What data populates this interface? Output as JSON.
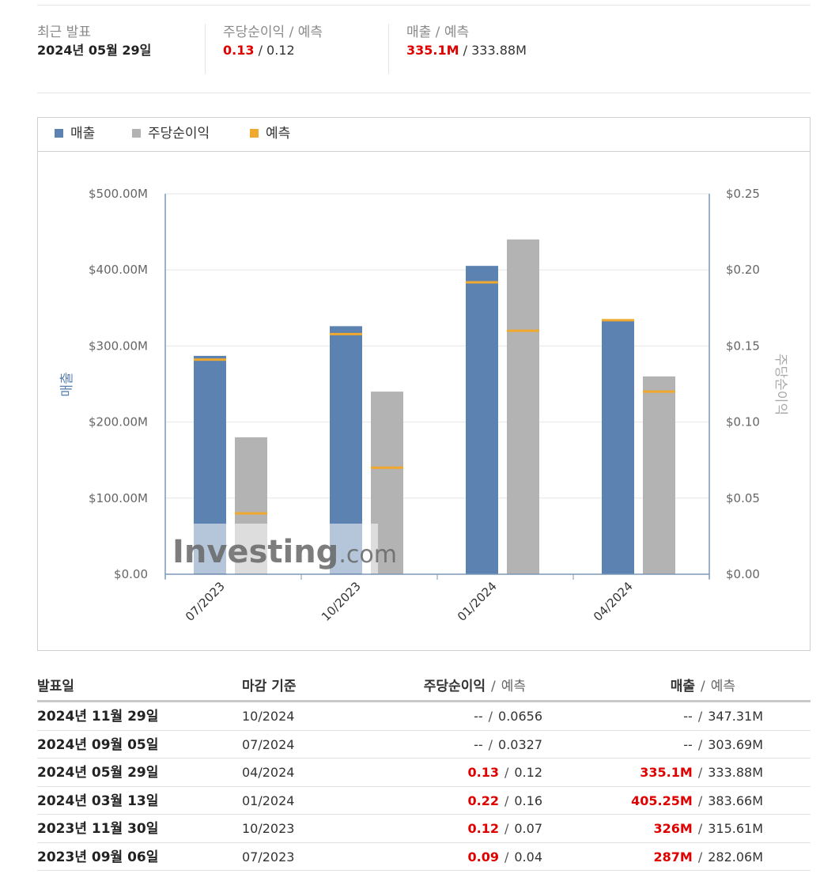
{
  "summary": {
    "recent_label": "최근 발표",
    "recent_date": "2024년 05월 29일",
    "eps_label": "주당순이익 / 예측",
    "eps_actual": "0.13",
    "eps_forecast": "0.12",
    "rev_label": "매출 / 예측",
    "rev_actual": "335.1M",
    "rev_forecast": "333.88M"
  },
  "legend": {
    "revenue": "매출",
    "eps": "주당순이익",
    "forecast": "예측"
  },
  "colors": {
    "revenue": "#5b82b0",
    "eps": "#b3b3b3",
    "forecast": "#f0a92e",
    "red": "#e00000"
  },
  "chart_data": {
    "type": "bar",
    "categories": [
      "07/2023",
      "10/2023",
      "01/2024",
      "04/2024"
    ],
    "series": [
      {
        "name": "매출",
        "axis": "left",
        "values": [
          287,
          326,
          405.25,
          335.1
        ],
        "forecast": [
          282.06,
          315.61,
          383.66,
          333.88
        ]
      },
      {
        "name": "주당순이익",
        "axis": "right",
        "values": [
          0.09,
          0.12,
          0.22,
          0.13
        ],
        "forecast": [
          0.04,
          0.07,
          0.16,
          0.12
        ]
      }
    ],
    "ylabel_left": "매출",
    "ylabel_right": "주당순이익",
    "ylim_left": [
      0,
      500
    ],
    "ylim_right": [
      0,
      0.25
    ],
    "left_ticks": [
      "$0.00",
      "$100.00M",
      "$200.00M",
      "$300.00M",
      "$400.00M",
      "$500.00M"
    ],
    "right_ticks": [
      "$0.00",
      "$0.05",
      "$0.10",
      "$0.15",
      "$0.20",
      "$0.25"
    ],
    "grid": true,
    "watermark": "Investing.com"
  },
  "table": {
    "headers": {
      "date": "발표일",
      "period": "마감 기준",
      "eps": "주당순이익",
      "eps_fc": "예측",
      "rev": "매출",
      "rev_fc": "예측"
    },
    "rows": [
      {
        "date": "2024년 11월 29일",
        "period": "10/2024",
        "eps": "--",
        "eps_fc": "0.0656",
        "rev": "--",
        "rev_fc": "347.31M",
        "red": false
      },
      {
        "date": "2024년 09월 05일",
        "period": "07/2024",
        "eps": "--",
        "eps_fc": "0.0327",
        "rev": "--",
        "rev_fc": "303.69M",
        "red": false
      },
      {
        "date": "2024년 05월 29일",
        "period": "04/2024",
        "eps": "0.13",
        "eps_fc": "0.12",
        "rev": "335.1M",
        "rev_fc": "333.88M",
        "red": true
      },
      {
        "date": "2024년 03월 13일",
        "period": "01/2024",
        "eps": "0.22",
        "eps_fc": "0.16",
        "rev": "405.25M",
        "rev_fc": "383.66M",
        "red": true
      },
      {
        "date": "2023년 11월 30일",
        "period": "10/2023",
        "eps": "0.12",
        "eps_fc": "0.07",
        "rev": "326M",
        "rev_fc": "315.61M",
        "red": true
      },
      {
        "date": "2023년 09월 06일",
        "period": "07/2023",
        "eps": "0.09",
        "eps_fc": "0.04",
        "rev": "287M",
        "rev_fc": "282.06M",
        "red": true
      }
    ]
  }
}
